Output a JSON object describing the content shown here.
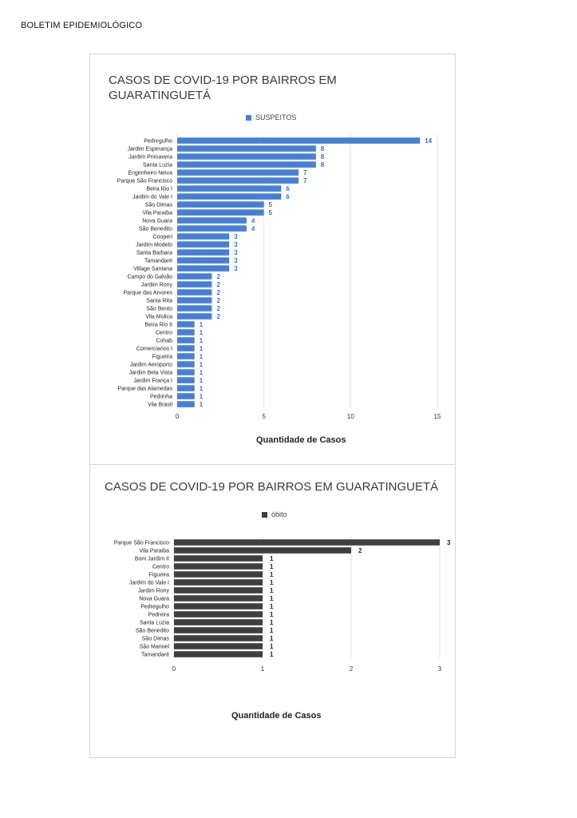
{
  "header": {
    "title": "BOLETIM EPIDEMIOLÓGICO"
  },
  "chart_data": [
    {
      "type": "bar",
      "orientation": "horizontal",
      "title": "CASOS DE COVID-19 POR BAIRROS EM GUARATINGUETÁ",
      "xlabel": "Quantidade de Casos",
      "ylabel": "",
      "xlim": [
        0,
        15
      ],
      "xticks": [
        0,
        5,
        10,
        15
      ],
      "grid": true,
      "legend_position": "top-center",
      "color": "#4a7fcf",
      "label_color": "#3c6fbf",
      "categories": [
        "Pedregulho",
        "Jardim Esperança",
        "Jardim Primavera",
        "Santa Luzia",
        "Engenheiro Neiva",
        "Parque São Francisco",
        "Beira Rio I",
        "Jardim do Vale I",
        "São Dimas",
        "Vila Paraiba",
        "Nova Guara",
        "São Benedito",
        "Cooperi",
        "Jardim Modelo",
        "Santa Barbara",
        "Tamandaré",
        "Village Santana",
        "Campo do Galvão",
        "Jardim Rony",
        "Parque das Arvores",
        "Santa Rita",
        "São Bento",
        "Vila Molica",
        "Beira Rio II",
        "Centro",
        "Cohab",
        "Comerciarios I",
        "Figueira",
        "Jardim Aeroporto",
        "Jardim Bela Vista",
        "Jardim França I",
        "Parque das Alamedas",
        "Pedrinha",
        "Vila Brasil"
      ],
      "series": [
        {
          "name": "SUSPEITOS",
          "values": [
            14,
            8,
            8,
            8,
            7,
            7,
            6,
            6,
            5,
            5,
            4,
            4,
            3,
            3,
            3,
            3,
            3,
            2,
            2,
            2,
            2,
            2,
            2,
            1,
            1,
            1,
            1,
            1,
            1,
            1,
            1,
            1,
            1,
            1
          ]
        }
      ]
    },
    {
      "type": "bar",
      "orientation": "horizontal",
      "title": "CASOS DE COVID-19 POR BAIRROS EM GUARATINGUETÁ",
      "xlabel": "Quantidade de Casos",
      "ylabel": "",
      "xlim": [
        0,
        3
      ],
      "xticks": [
        0,
        1,
        2,
        3
      ],
      "grid": true,
      "legend_position": "top-center",
      "color": "#3f3f3f",
      "label_color": "#222222",
      "categories": [
        "Parque São Francisco",
        "Vila Paraiba",
        "Bom Jardim II",
        "Centro",
        "Figueira",
        "Jardim do Vale I",
        "Jardim Rony",
        "Nova Guara",
        "Pedregulho",
        "Pedreira",
        "Santa Luzia",
        "São Benedito",
        "São Dimas",
        "São Manoel",
        "Tamandaré"
      ],
      "series": [
        {
          "name": "óbito",
          "values": [
            3,
            2,
            1,
            1,
            1,
            1,
            1,
            1,
            1,
            1,
            1,
            1,
            1,
            1,
            1
          ]
        }
      ]
    }
  ]
}
